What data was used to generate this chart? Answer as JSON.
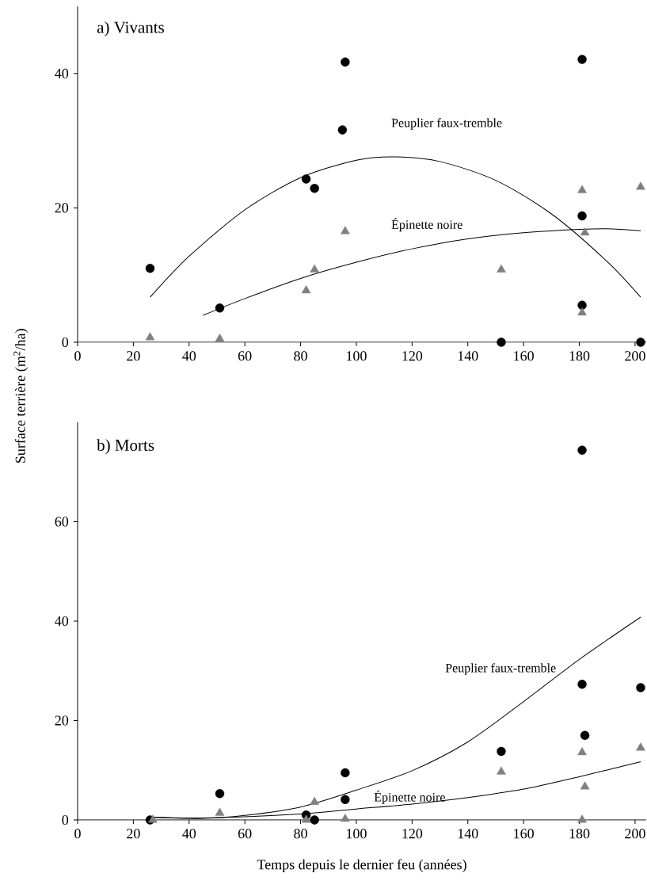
{
  "chart_data": [
    {
      "type": "scatter",
      "title": "a)  Vivants",
      "ylabel": "Surface terrière (m$^{2}$/ha)",
      "xlim": [
        0,
        204
      ],
      "ylim": [
        0,
        50
      ],
      "xticks": [
        0,
        20,
        40,
        60,
        80,
        100,
        120,
        140,
        160,
        180,
        200
      ],
      "yticks": [
        0,
        20,
        40
      ],
      "series": [
        {
          "marker": "circle",
          "color": "#000000",
          "x": [
            26,
            51,
            82,
            85,
            95,
            96,
            152,
            181,
            181,
            181,
            202
          ],
          "values": [
            11,
            5.1,
            24.3,
            22.9,
            31.6,
            41.7,
            0,
            42.1,
            18.8,
            5.5,
            0
          ]
        },
        {
          "marker": "triangle",
          "color": "#808080",
          "x": [
            26,
            51,
            82,
            85,
            96,
            152,
            181,
            182,
            181,
            202
          ],
          "values": [
            0.7,
            0.5,
            7.7,
            10.8,
            16.5,
            10.8,
            22.6,
            16.3,
            4.4,
            23.1
          ]
        },
        {
          "type": "line",
          "name": "Peuplier faux-tremble",
          "color": "#000000",
          "x": [
            26,
            40,
            60,
            80,
            100,
            114,
            130,
            150,
            170,
            190,
            202
          ],
          "values": [
            6.7,
            12.8,
            19.7,
            24.5,
            27.1,
            27.6,
            26.9,
            24.1,
            19.1,
            12.0,
            6.7
          ]
        },
        {
          "type": "line",
          "name": "Épinette noire",
          "color": "#000000",
          "x": [
            45,
            60,
            80,
            100,
            120,
            140,
            160,
            180,
            190,
            202
          ],
          "values": [
            4.0,
            6.5,
            9.5,
            11.9,
            13.9,
            15.4,
            16.3,
            16.8,
            16.9,
            16.6
          ]
        }
      ]
    },
    {
      "type": "scatter",
      "title": "b)  Morts",
      "xlabel": "Temps depuis le dernier feu (années)",
      "xlim": [
        0,
        204
      ],
      "ylim": [
        0,
        80
      ],
      "xticks": [
        0,
        20,
        40,
        60,
        80,
        100,
        120,
        140,
        160,
        180,
        200
      ],
      "yticks": [
        0,
        20,
        40,
        60
      ],
      "series": [
        {
          "marker": "circle",
          "color": "#000000",
          "x": [
            26,
            51,
            82,
            85,
            96,
            96,
            152,
            181,
            181,
            182,
            202
          ],
          "values": [
            0,
            5.3,
            1.0,
            0,
            9.5,
            4.1,
            13.8,
            74.4,
            27.3,
            17.0,
            26.6
          ]
        },
        {
          "marker": "triangle",
          "color": "#808080",
          "x": [
            27,
            51,
            82,
            85,
            96,
            152,
            181,
            182,
            181,
            202
          ],
          "values": [
            0,
            1.4,
            0,
            3.6,
            0.2,
            9.7,
            13.6,
            6.7,
            0,
            14.5
          ]
        },
        {
          "type": "line",
          "name": "Peuplier faux-tremble",
          "color": "#000000",
          "x": [
            26,
            45,
            60,
            80,
            100,
            120,
            140,
            160,
            180,
            202
          ],
          "values": [
            0.5,
            0.3,
            0.9,
            2.6,
            6.0,
            9.9,
            15.7,
            23.8,
            32.3,
            40.8
          ]
        },
        {
          "type": "line",
          "name": "Épinette noire",
          "color": "#000000",
          "x": [
            26,
            45,
            80,
            100,
            120,
            140,
            160,
            180,
            202
          ],
          "values": [
            0.6,
            0.4,
            1.2,
            2.2,
            3.2,
            4.5,
            6.2,
            8.7,
            11.7
          ]
        }
      ]
    }
  ]
}
